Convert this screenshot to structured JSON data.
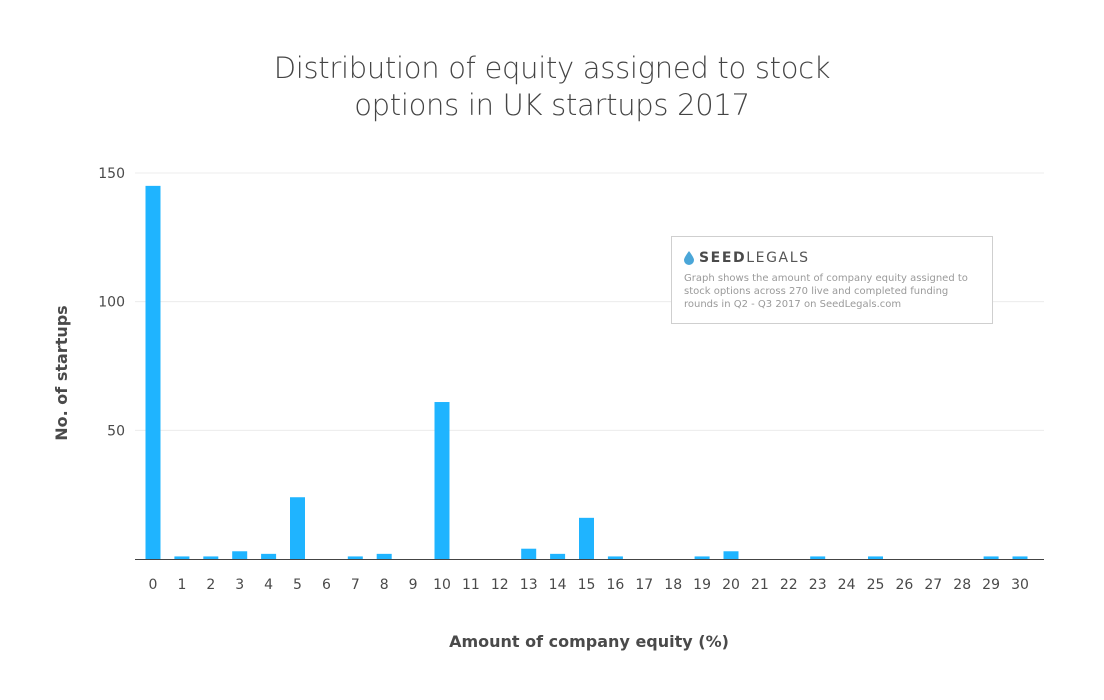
{
  "chart_data": {
    "type": "bar",
    "title": [
      "Distribution of equity assigned to stock",
      "options in UK startups 2017"
    ],
    "xlabel": "Amount of company equity (%)",
    "ylabel": "No. of startups",
    "categories": [
      "0",
      "1",
      "2",
      "3",
      "4",
      "5",
      "6",
      "7",
      "8",
      "9",
      "10",
      "11",
      "12",
      "13",
      "14",
      "15",
      "16",
      "17",
      "18",
      "19",
      "20",
      "21",
      "22",
      "23",
      "24",
      "25",
      "26",
      "27",
      "28",
      "29",
      "30"
    ],
    "values": [
      145,
      1,
      1,
      3,
      2,
      24,
      0,
      1,
      2,
      0,
      61,
      0,
      0,
      4,
      2,
      16,
      1,
      0,
      0,
      1,
      3,
      0,
      0,
      1,
      0,
      1,
      0,
      0,
      0,
      1,
      1
    ],
    "ylim": [
      0,
      150
    ],
    "yticks": [
      50,
      100,
      150
    ],
    "grid": true,
    "bar_color": "#1fb4ff",
    "gridline_color": "#ececec",
    "axis_color": "#444444"
  },
  "annotation": {
    "logo_part1": "SEED",
    "logo_part2": "LEGALS",
    "logo_icon": "water-drop-icon",
    "logo_icon_color": "#4aa6d8",
    "note": "Graph shows the amount of company equity assigned to stock options across 270 live and completed funding rounds in Q2 - Q3 2017 on SeedLegals.com"
  }
}
